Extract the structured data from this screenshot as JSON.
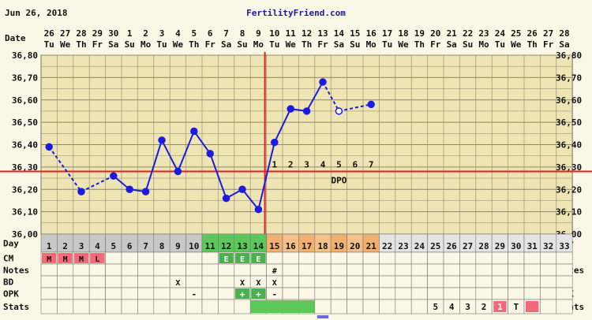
{
  "header": {
    "date": "Jun 26, 2018",
    "site": "FertilityFriend.com"
  },
  "labels": {
    "date_row": "Date",
    "day_row": "Day",
    "cm_row": "CM",
    "notes_row": "Notes",
    "bd_row": "BD",
    "opk_row": "OPK",
    "stats_row": "Stats",
    "dpo": "DPO"
  },
  "colors": {
    "background": "#fbf7e6",
    "plot_bg": "#eee4b4",
    "grid": "#8a8a6a",
    "temp_line": "#1c1ce0",
    "coverline": "#e02020",
    "ovulation_line": "#e02020",
    "day_cell_default": "#c8c8c8",
    "day_cell_fertile": "#5cc85c",
    "day_cell_luteal": "#f5c18a",
    "day_cell_luteal_alt": "#f0b070",
    "cm_menstrual": "#f06a7a",
    "cm_eggwhite": "#4caf50",
    "opk_positive": "#4caf50",
    "stats_pink": "#f06a7a",
    "stats_green": "#5cc85c"
  },
  "chart_data": {
    "type": "line",
    "title": "",
    "ylabel": "",
    "ylim": [
      36.0,
      36.8
    ],
    "yticks": [
      "36,80",
      "36,70",
      "36,60",
      "36,50",
      "36,40",
      "36,30",
      "36,20",
      "36,10",
      "36,00"
    ],
    "dates": [
      "26",
      "27",
      "28",
      "29",
      "30",
      "1",
      "2",
      "3",
      "4",
      "5",
      "6",
      "7",
      "8",
      "9",
      "10",
      "11",
      "12",
      "13",
      "14",
      "15",
      "16",
      "17",
      "18",
      "19",
      "20",
      "21",
      "22",
      "23",
      "24",
      "25",
      "26",
      "27",
      "28"
    ],
    "weekdays": [
      "Tu",
      "We",
      "Th",
      "Fr",
      "Sa",
      "Su",
      "Mo",
      "Tu",
      "We",
      "Th",
      "Fr",
      "Sa",
      "Su",
      "Mo",
      "Tu",
      "We",
      "Th",
      "Fr",
      "Sa",
      "Su",
      "Mo",
      "Tu",
      "We",
      "Th",
      "Fr",
      "Sa",
      "Su",
      "Mo",
      "Tu",
      "We",
      "Th",
      "Fr",
      "Sa"
    ],
    "cycle_days": [
      "1",
      "2",
      "3",
      "4",
      "5",
      "6",
      "7",
      "8",
      "9",
      "10",
      "11",
      "12",
      "13",
      "14",
      "15",
      "16",
      "17",
      "18",
      "19",
      "20",
      "21",
      "22",
      "23",
      "24",
      "25",
      "26",
      "27",
      "28",
      "29",
      "30",
      "31",
      "32",
      "33"
    ],
    "temperatures": [
      36.39,
      null,
      36.19,
      null,
      36.26,
      36.2,
      36.19,
      36.42,
      36.28,
      36.46,
      36.36,
      36.16,
      36.2,
      36.11,
      36.41,
      36.56,
      36.55,
      36.68,
      36.55,
      null,
      36.58
    ],
    "open_points": [
      false,
      false,
      false,
      false,
      false,
      false,
      false,
      false,
      false,
      false,
      false,
      false,
      false,
      false,
      false,
      false,
      false,
      false,
      true,
      false,
      false
    ],
    "coverline": 36.28,
    "ovulation_day": 14,
    "dpo_labels": [
      "1",
      "2",
      "3",
      "4",
      "5",
      "6",
      "7"
    ],
    "dpo_start_day": 15,
    "fertile_days": [
      11,
      12,
      13,
      14
    ],
    "luteal_days": [
      15,
      16,
      17,
      18,
      19,
      20,
      21
    ],
    "cm": [
      {
        "day": 1,
        "value": "M",
        "kind": "menstrual"
      },
      {
        "day": 2,
        "value": "M",
        "kind": "menstrual"
      },
      {
        "day": 3,
        "value": "M",
        "kind": "menstrual"
      },
      {
        "day": 4,
        "value": "L",
        "kind": "menstrual"
      },
      {
        "day": 12,
        "value": "E",
        "kind": "eggwhite"
      },
      {
        "day": 13,
        "value": "E",
        "kind": "eggwhite"
      },
      {
        "day": 14,
        "value": "E",
        "kind": "eggwhite"
      }
    ],
    "notes": [
      {
        "day": 15,
        "value": "#"
      }
    ],
    "bd": [
      {
        "day": 9,
        "value": "X"
      },
      {
        "day": 13,
        "value": "X"
      },
      {
        "day": 14,
        "value": "X"
      },
      {
        "day": 15,
        "value": "X"
      }
    ],
    "opk": [
      {
        "day": 10,
        "value": "-",
        "kind": "negative"
      },
      {
        "day": 13,
        "value": "+",
        "kind": "positive"
      },
      {
        "day": 14,
        "value": "+",
        "kind": "positive"
      },
      {
        "day": 15,
        "value": "-",
        "kind": "negative"
      }
    ],
    "stats": [
      {
        "day": 25,
        "value": "5",
        "kind": "plain"
      },
      {
        "day": 26,
        "value": "4",
        "kind": "plain"
      },
      {
        "day": 27,
        "value": "3",
        "kind": "plain"
      },
      {
        "day": 28,
        "value": "2",
        "kind": "plain"
      },
      {
        "day": 29,
        "value": "1",
        "kind": "pink"
      },
      {
        "day": 30,
        "value": "T",
        "kind": "plain"
      },
      {
        "day": 31,
        "value": "",
        "kind": "pink"
      }
    ],
    "stats_bar": {
      "from_day": 14,
      "to_day": 17
    }
  }
}
